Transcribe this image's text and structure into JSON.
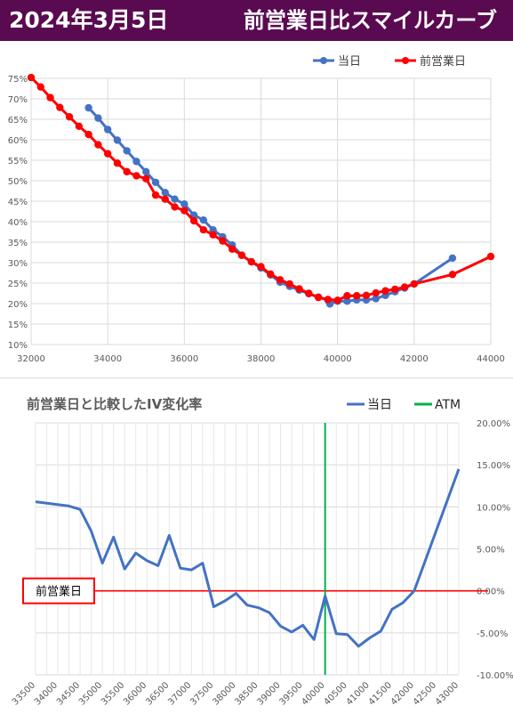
{
  "header": {
    "date": "2024年3月5日",
    "title": "前営業日比スマイルカーブ",
    "bg_color": "#5a0a50"
  },
  "chart_data": [
    {
      "type": "line",
      "xlim": [
        32000,
        44000
      ],
      "ylim": [
        10,
        75
      ],
      "x_ticks": [
        32000,
        34000,
        36000,
        38000,
        40000,
        42000,
        44000
      ],
      "y_ticks": [
        10,
        15,
        20,
        25,
        30,
        35,
        40,
        45,
        50,
        55,
        60,
        65,
        70,
        75
      ],
      "y_tick_suffix": "%",
      "grid": true,
      "legend": "top-right",
      "series": [
        {
          "name": "当日",
          "color": "#4472c4",
          "points": [
            [
              33500,
              67.8
            ],
            [
              33750,
              65.3
            ],
            [
              34000,
              62.5
            ],
            [
              34250,
              59.9
            ],
            [
              34500,
              57.3
            ],
            [
              34750,
              54.7
            ],
            [
              35000,
              52.2
            ],
            [
              35250,
              49.6
            ],
            [
              35500,
              47.1
            ],
            [
              35750,
              45.5
            ],
            [
              36000,
              44.3
            ],
            [
              36250,
              41.6
            ],
            [
              36500,
              40.4
            ],
            [
              36750,
              38.0
            ],
            [
              37000,
              36.3
            ],
            [
              37250,
              34.3
            ],
            [
              37500,
              31.8
            ],
            [
              37750,
              30.2
            ],
            [
              38000,
              28.7
            ],
            [
              38250,
              27.0
            ],
            [
              38500,
              25.2
            ],
            [
              38750,
              24.2
            ],
            [
              39000,
              23.3
            ],
            [
              39250,
              22.4
            ],
            [
              39500,
              21.6
            ],
            [
              39750,
              20.8
            ],
            [
              39800,
              19.9
            ],
            [
              40000,
              20.6
            ],
            [
              40250,
              20.6
            ],
            [
              40500,
              20.9
            ],
            [
              40750,
              20.9
            ],
            [
              41000,
              21.2
            ],
            [
              41250,
              22.0
            ],
            [
              41500,
              22.9
            ],
            [
              41750,
              23.8
            ],
            [
              42000,
              24.8
            ],
            [
              43000,
              31.1
            ]
          ]
        },
        {
          "name": "前営業日",
          "color": "#ff0000",
          "points": [
            [
              32000,
              75.2
            ],
            [
              32250,
              72.9
            ],
            [
              32500,
              70.3
            ],
            [
              32750,
              67.9
            ],
            [
              33000,
              65.6
            ],
            [
              33250,
              63.3
            ],
            [
              33500,
              61.3
            ],
            [
              33750,
              58.8
            ],
            [
              34000,
              56.6
            ],
            [
              34250,
              54.3
            ],
            [
              34500,
              52.2
            ],
            [
              34750,
              51.2
            ],
            [
              35000,
              50.5
            ],
            [
              35250,
              46.5
            ],
            [
              35500,
              45.5
            ],
            [
              35750,
              43.6
            ],
            [
              36000,
              42.7
            ],
            [
              36250,
              40.2
            ],
            [
              36500,
              38.0
            ],
            [
              36750,
              36.8
            ],
            [
              37000,
              35.3
            ],
            [
              37250,
              33.3
            ],
            [
              37500,
              31.8
            ],
            [
              37750,
              30.2
            ],
            [
              38000,
              29.0
            ],
            [
              38250,
              27.2
            ],
            [
              38500,
              25.8
            ],
            [
              38750,
              24.8
            ],
            [
              39000,
              23.6
            ],
            [
              39250,
              22.5
            ],
            [
              39500,
              21.5
            ],
            [
              39750,
              21.0
            ],
            [
              40000,
              20.8
            ],
            [
              40250,
              21.9
            ],
            [
              40500,
              21.9
            ],
            [
              40750,
              22.0
            ],
            [
              41000,
              22.6
            ],
            [
              41250,
              23.1
            ],
            [
              41500,
              23.5
            ],
            [
              41750,
              24.0
            ],
            [
              42000,
              24.8
            ],
            [
              43000,
              27.1
            ],
            [
              44000,
              31.5
            ]
          ]
        }
      ]
    },
    {
      "type": "line",
      "title": "前営業日と比較したIV変化率",
      "categories": [
        "33500",
        "34000",
        "34500",
        "35000",
        "35500",
        "36000",
        "36500",
        "37000",
        "37500",
        "38000",
        "38500",
        "39000",
        "39500",
        "40000",
        "40500",
        "41000",
        "41500",
        "42000",
        "42500",
        "43000"
      ],
      "xlim": [
        33500,
        43000
      ],
      "ylim": [
        -10,
        20
      ],
      "y_ticks": [
        -10,
        -5,
        0,
        5,
        10,
        15,
        20
      ],
      "y_tick_labels": [
        "-10.00%",
        "-5.00%",
        "0.00%",
        "5.00%",
        "10.00%",
        "15.00%",
        "20.00%"
      ],
      "grid": true,
      "legend": "top-right",
      "zero_line_label": "前営業日",
      "zero_line_color": "#ff0000",
      "series": [
        {
          "name": "当日",
          "color": "#4472c4",
          "points": [
            [
              33500,
              10.6
            ],
            [
              34250,
              10.1
            ],
            [
              34500,
              9.7
            ],
            [
              34750,
              7.1
            ],
            [
              35000,
              3.3
            ],
            [
              35250,
              6.4
            ],
            [
              35500,
              2.6
            ],
            [
              35750,
              4.5
            ],
            [
              36000,
              3.6
            ],
            [
              36250,
              3.0
            ],
            [
              36500,
              6.6
            ],
            [
              36750,
              2.7
            ],
            [
              37000,
              2.5
            ],
            [
              37250,
              3.3
            ],
            [
              37500,
              -1.9
            ],
            [
              37750,
              -1.2
            ],
            [
              38000,
              -0.3
            ],
            [
              38250,
              -1.7
            ],
            [
              38500,
              -2.0
            ],
            [
              38750,
              -2.6
            ],
            [
              39000,
              -4.2
            ],
            [
              39250,
              -4.9
            ],
            [
              39500,
              -4.1
            ],
            [
              39750,
              -5.8
            ],
            [
              40000,
              -0.6
            ],
            [
              40250,
              -5.1
            ],
            [
              40500,
              -5.2
            ],
            [
              40750,
              -6.6
            ],
            [
              41000,
              -5.6
            ],
            [
              41250,
              -4.8
            ],
            [
              41500,
              -2.2
            ],
            [
              41750,
              -1.4
            ],
            [
              42000,
              0.0
            ],
            [
              43000,
              14.5
            ]
          ]
        },
        {
          "name": "ATM",
          "color": "#00b050",
          "x": 40000
        }
      ]
    }
  ]
}
